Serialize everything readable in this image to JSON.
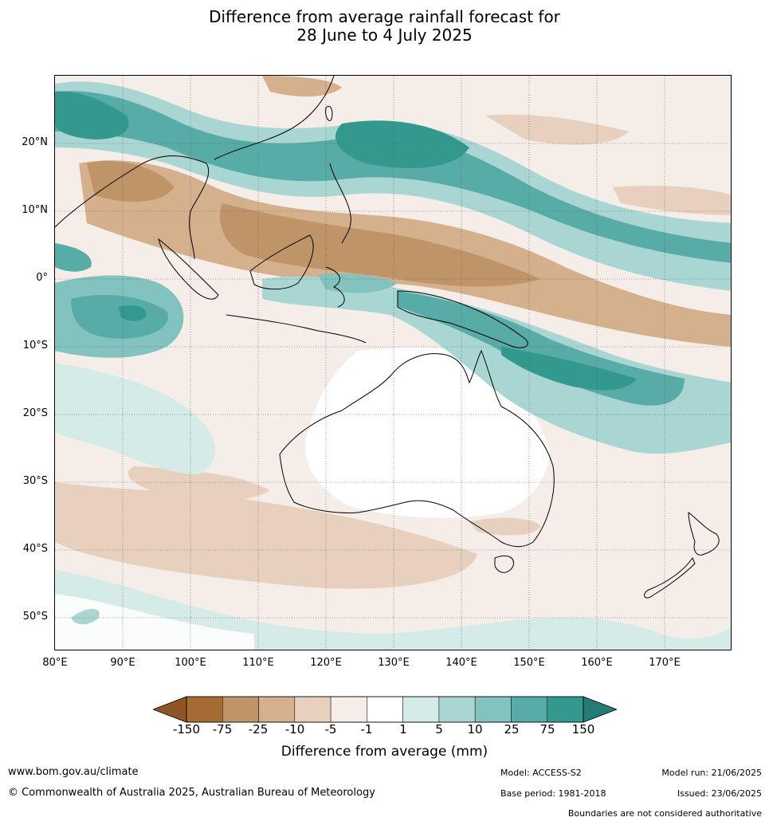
{
  "title": {
    "line1": "Difference from average rainfall forecast for",
    "line2": "28 June to 4 July 2025"
  },
  "map": {
    "lon_range": [
      80,
      180
    ],
    "lat_range": [
      -55,
      30
    ],
    "lat_labels": [
      "20°N",
      "10°N",
      "0°",
      "10°S",
      "20°S",
      "30°S",
      "40°S",
      "50°S"
    ],
    "lon_labels": [
      "80°E",
      "90°E",
      "100°E",
      "110°E",
      "120°E",
      "130°E",
      "140°E",
      "150°E",
      "160°E",
      "170°E"
    ],
    "legend_colors": {
      "brown_strong": "#a66a35",
      "brown": "#bf9468",
      "tan": "#d5b08d",
      "beige": "#e7d1be",
      "cream": "#f5ede7",
      "white": "#ffffff",
      "teal_pale": "#d5ebe8",
      "teal_light": "#a9d6d3",
      "teal_mid": "#82c2bf",
      "teal": "#58aca8",
      "teal_dark": "#33998f"
    }
  },
  "colorbar": {
    "ticks": [
      "-150",
      "-75",
      "-25",
      "-10",
      "-5",
      "-1",
      "1",
      "5",
      "10",
      "25",
      "75",
      "150"
    ],
    "colors": [
      "#a66a35",
      "#bf9468",
      "#d5b08d",
      "#e7d1be",
      "#f5ede7",
      "#ffffff",
      "#d5ebe8",
      "#a9d6d3",
      "#82c2bf",
      "#58aca8",
      "#33998f"
    ],
    "low_arrow_color": "#8f5525",
    "high_arrow_color": "#247b77",
    "title": "Difference from average (mm)"
  },
  "footer": {
    "website": "www.bom.gov.au/climate",
    "copyright": "© Commonwealth of Australia 2025, Australian Bureau of Meteorology",
    "model": "Model: ACCESS-S2",
    "base_period": "Base period: 1981-2018",
    "model_run": "Model run: 21/06/2025",
    "issued": "Issued: 23/06/2025",
    "disclaimer": "Boundaries are not considered authoritative"
  }
}
